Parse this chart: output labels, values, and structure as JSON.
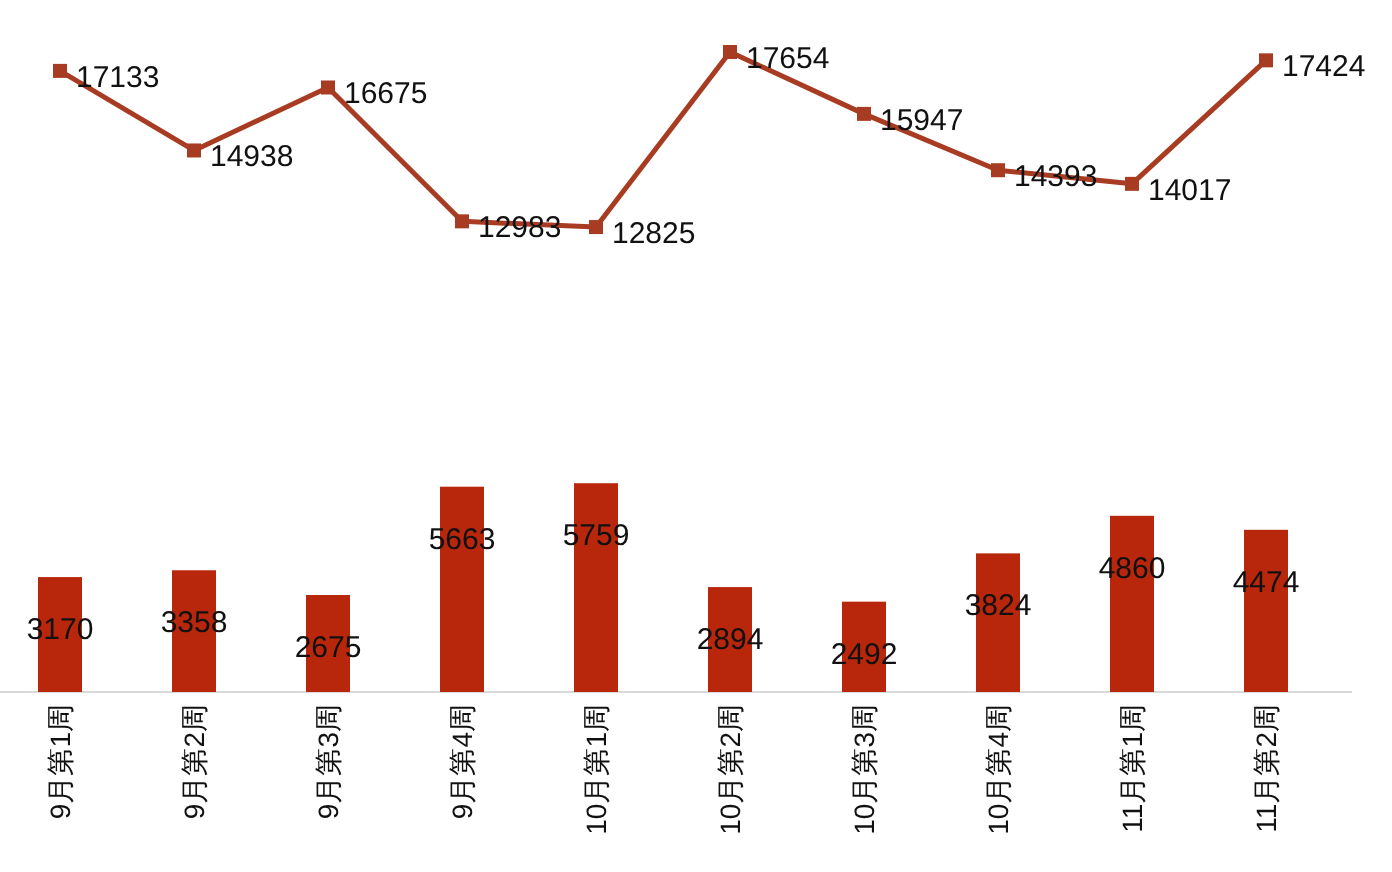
{
  "chart_data": {
    "type": "bar",
    "categories": [
      "9月第1周",
      "9月第2周",
      "9月第3周",
      "9月第4周",
      "10月第1周",
      "10月第2周",
      "10月第3周",
      "10月第4周",
      "11月第1周",
      "11月第2周"
    ],
    "series": [
      {
        "color": "#b8260c",
        "values": [
          3170,
          3358,
          2675,
          5663,
          5759,
          2894,
          2492,
          3824,
          4860,
          4474
        ]
      },
      {
        "type": "line",
        "color": "#a83c22",
        "marker": "square",
        "values": [
          17133,
          14938,
          16675,
          12983,
          12825,
          17654,
          15947,
          14393,
          14017,
          17424
        ]
      }
    ],
    "data_labels": true,
    "tick_labels": "x"
  }
}
